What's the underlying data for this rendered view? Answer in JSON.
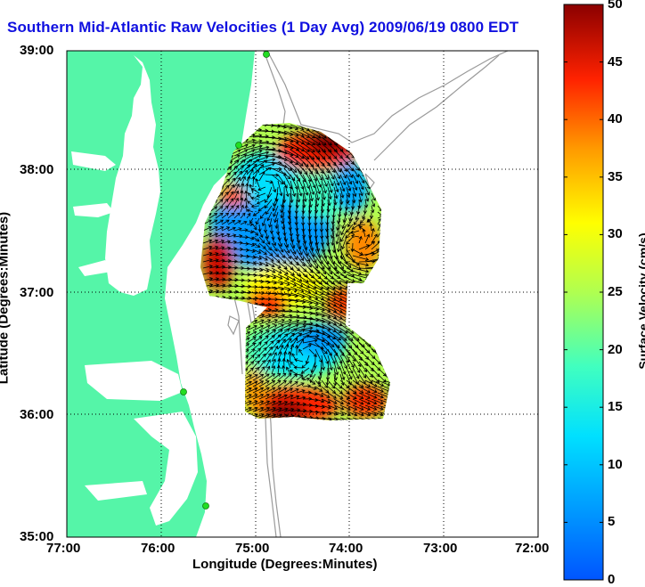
{
  "title": "Southern Mid-Atlantic Raw Velocities (1 Day Avg) 2009/06/19 0800 EDT",
  "xlabel": "Longitude (Degrees:Minutes)",
  "ylabel": "Latitude (Degrees:Minutes)",
  "x_ticks": [
    "77:00",
    "76:00",
    "75:00",
    "74:00",
    "73:00",
    "72:00"
  ],
  "y_ticks": [
    "39:00",
    "38:00",
    "37:00",
    "36:00",
    "35:00"
  ],
  "colorbar": {
    "label": "Surface Velocity (cm/s)",
    "ticks": [
      "50",
      "45",
      "40",
      "35",
      "30",
      "25",
      "20",
      "15",
      "10",
      "5",
      "0"
    ],
    "range": [
      0,
      50
    ],
    "colormap": "jet"
  },
  "colors": {
    "land": "#55f5a8",
    "water": "#ffffff",
    "title": "#1010e0",
    "station": "#22dd22",
    "bathymetry": "#999999"
  }
}
